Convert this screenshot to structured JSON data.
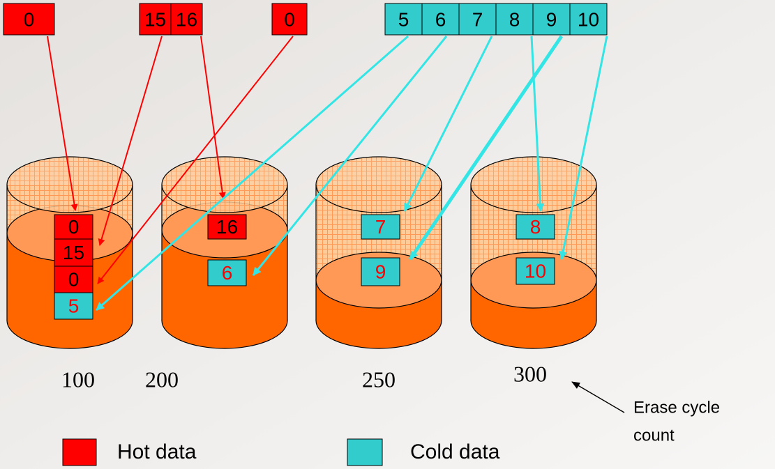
{
  "incoming": {
    "hot": [
      "0",
      "15",
      "16",
      "0"
    ],
    "cold": [
      "5",
      "6",
      "7",
      "8",
      "9",
      "10"
    ]
  },
  "blocks": [
    {
      "pages": [
        "0",
        "15",
        "0",
        "5"
      ],
      "erase_count": "100"
    },
    {
      "pages": [
        "16",
        "6"
      ],
      "erase_count": "200"
    },
    {
      "pages": [
        "7",
        "9"
      ],
      "erase_count": "250"
    },
    {
      "pages": [
        "8",
        "10"
      ],
      "erase_count": "300"
    }
  ],
  "annotation": [
    "Erase cycle",
    "count"
  ],
  "legend": [
    "Hot data",
    "Cold data"
  ]
}
